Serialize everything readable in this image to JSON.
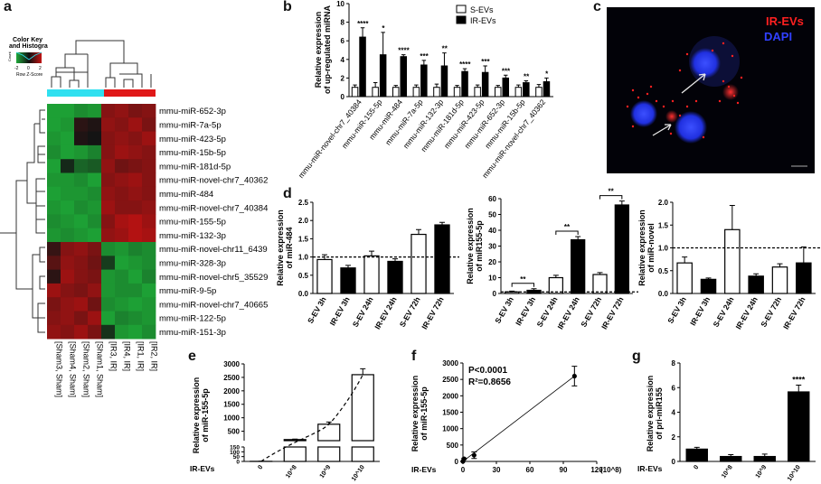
{
  "colors": {
    "ir_bar": "#000000",
    "s_bar": "#ffffff",
    "green": "#1fa83a",
    "red": "#c21414",
    "cyan": "#30e0f0",
    "ir_red": "#ff2020",
    "dapi": "#2030ff"
  },
  "panel_labels": {
    "a": "a",
    "b": "b",
    "c": "c",
    "d": "d",
    "e": "e",
    "f": "f",
    "g": "g"
  },
  "panel_a": {
    "color_key_title": "Color Key\nand Histogra",
    "color_key_ticks": [
      "-2",
      "0",
      "2"
    ],
    "color_key_xlabel": "Row Z-Score",
    "color_key_ylabel": "Count",
    "columns": [
      "[Sham3, Sham]",
      "[Sham4, Sham]",
      "[Sham2, Sham]",
      "[Sham1, Sham]",
      "[IR3, IR]",
      "[IR4, IR]",
      "[IR1, IR]",
      "[IR2, IR]"
    ],
    "rows": [
      "mmu-miR-652-3p",
      "mmu-miR-7a-5p",
      "mmu-miR-423-5p",
      "mmu-miR-15b-5p",
      "mmu-miR-181d-5p",
      "mmu-miR-novel-chr7_40362",
      "mmu-miR-484",
      "mmu-miR-novel-chr7_40384",
      "mmu-miR-155-5p",
      "mmu-miR-132-3p",
      "mmu-miR-novel-chr11_6439",
      "mmu-miR-328-3p",
      "mmu-miR-novel-chr5_35529",
      "mmu-miR-9-5p",
      "mmu-miR-novel-chr7_40665",
      "mmu-miR-122-5p",
      "mmu-miR-151-3p"
    ],
    "zscores": [
      [
        -1.4,
        -1.4,
        -1.2,
        -1.3,
        1.0,
        1.1,
        0.9,
        1.0
      ],
      [
        -1.4,
        -1.3,
        0.2,
        0.1,
        1.1,
        1.0,
        1.2,
        0.9
      ],
      [
        -1.3,
        -1.4,
        0.1,
        0.0,
        1.0,
        1.1,
        1.0,
        1.2
      ],
      [
        -1.2,
        -1.4,
        -1.3,
        -1.1,
        1.0,
        1.2,
        1.1,
        1.0
      ],
      [
        -1.4,
        -0.2,
        -0.8,
        -0.7,
        1.1,
        0.8,
        0.9,
        1.0
      ],
      [
        -1.3,
        -1.3,
        -1.2,
        -1.4,
        1.0,
        1.1,
        1.2,
        1.0
      ],
      [
        -1.4,
        -1.3,
        -1.3,
        -1.2,
        1.1,
        1.0,
        1.1,
        1.0
      ],
      [
        -1.3,
        -1.4,
        -1.2,
        -1.3,
        1.2,
        1.0,
        1.0,
        1.1
      ],
      [
        -1.2,
        -1.3,
        -1.4,
        -1.2,
        1.0,
        1.3,
        1.4,
        1.2
      ],
      [
        -1.3,
        -1.2,
        -1.3,
        -1.4,
        1.1,
        1.2,
        1.4,
        1.3
      ],
      [
        0.3,
        1.0,
        1.1,
        0.9,
        -1.2,
        -1.3,
        -1.1,
        -1.2
      ],
      [
        0.6,
        1.1,
        1.0,
        0.8,
        -0.4,
        -1.4,
        -1.3,
        -1.2
      ],
      [
        0.2,
        1.2,
        1.0,
        0.9,
        -1.3,
        -1.2,
        -1.4,
        -1.1
      ],
      [
        1.2,
        1.0,
        0.9,
        1.1,
        -1.3,
        -1.2,
        -1.2,
        -1.4
      ],
      [
        0.9,
        1.1,
        1.2,
        0.8,
        -1.2,
        -1.3,
        -1.4,
        -1.3
      ],
      [
        1.0,
        1.1,
        0.9,
        1.2,
        -1.4,
        -1.1,
        -1.2,
        -1.3
      ],
      [
        1.1,
        1.0,
        1.2,
        0.9,
        -0.3,
        -1.3,
        -1.4,
        -1.2
      ]
    ]
  },
  "panel_b": {
    "ylabel": "Relative expression\nof up-regulated miRNA",
    "legend": [
      "S-EVs",
      "IR-EVs"
    ],
    "yticks": [
      "0",
      "2",
      "4",
      "6",
      "8",
      "10"
    ]
  },
  "panel_c": {
    "legend": [
      "IR-EVs",
      "DAPI"
    ]
  },
  "panel_d": [
    {
      "ylabel": "Relative expression\nof miR-484"
    },
    {
      "ylabel": "Relative expression\nof miR155-5p"
    },
    {
      "ylabel": "Relative expression\nof miR-novel"
    }
  ],
  "panel_e": {
    "ylabel": "Relative expression\nof miR-155-5p",
    "xlead": "IR-EVs"
  },
  "panel_f": {
    "ylabel": "Relative expression\nof miR-155-5p",
    "xlead": "IR-EVs",
    "stats": [
      "P<0.0001",
      "R²=0.8656"
    ],
    "xunit": "(10^8)"
  },
  "panel_g": {
    "ylabel": "Relative expression\nof pri-miR155",
    "xlead": "IR-EVs"
  },
  "chart_data": [
    {
      "id": "b",
      "type": "bar",
      "categories": [
        "mmu-miR-novel-chr7_40384",
        "mmu-miR-155-5p",
        "mmu-miR-484",
        "mmu-miR-7a-5p",
        "mmu-miR-132-3p",
        "mmu-miR-181d-5p",
        "mmu-miR-423-5p",
        "mmu-miR-652-3p",
        "mmu-miR-15b-5p",
        "mmu-miR-novel-chr7_40362"
      ],
      "series": [
        {
          "name": "S-EVs",
          "values": [
            1,
            1,
            1,
            1,
            1,
            1,
            1,
            1,
            1,
            1
          ],
          "errors": [
            0.25,
            0.5,
            0.2,
            0.25,
            0.35,
            0.2,
            0.25,
            0.2,
            0.25,
            0.3
          ]
        },
        {
          "name": "IR-EVs",
          "values": [
            6.4,
            4.5,
            4.3,
            3.4,
            3.3,
            2.7,
            2.6,
            2.0,
            1.5,
            1.6
          ],
          "errors": [
            1.0,
            2.4,
            0.2,
            0.5,
            1.4,
            0.3,
            0.7,
            0.3,
            0.2,
            0.4
          ]
        }
      ],
      "significance": [
        "****",
        "*",
        "****",
        "***",
        "**",
        "****",
        "***",
        "***",
        "**",
        "*"
      ],
      "ylim": [
        0,
        10
      ]
    },
    {
      "id": "d1",
      "type": "bar",
      "categories": [
        "S-EV 3h",
        "IR-EV 3h",
        "S-EV 24h",
        "IR-EV 24h",
        "S-EV 72h",
        "IR-EV 72h"
      ],
      "values": [
        0.93,
        0.7,
        1.03,
        0.88,
        1.62,
        1.88
      ],
      "errors": [
        0.13,
        0.07,
        0.13,
        0.07,
        0.13,
        0.07
      ],
      "fills": [
        "s",
        "ir",
        "s",
        "ir",
        "s",
        "ir"
      ],
      "yticks": [
        "0.0",
        "0.5",
        "1.0",
        "1.5",
        "2.0",
        "2.5"
      ],
      "ylim": [
        0,
        2.5
      ],
      "refline": 1
    },
    {
      "id": "d2",
      "type": "bar",
      "categories": [
        "S-EV 3h",
        "IR-EV 3h",
        "S-EV 24h",
        "IR-EV 24h",
        "S-EV 72h",
        "IR-EV 72h"
      ],
      "values": [
        1,
        2,
        10,
        34,
        12,
        56
      ],
      "errors": [
        0.5,
        1,
        1.5,
        2,
        1.2,
        2.5
      ],
      "fills": [
        "s",
        "ir",
        "s",
        "ir",
        "s",
        "ir"
      ],
      "yticks": [
        "0",
        "10",
        "20",
        "30",
        "40",
        "50",
        "60"
      ],
      "ylim": [
        0,
        60
      ],
      "refline": 1,
      "brackets": [
        {
          "from": 0,
          "to": 1,
          "label": "**"
        },
        {
          "from": 2,
          "to": 3,
          "label": "**"
        },
        {
          "from": 4,
          "to": 5,
          "label": "**"
        }
      ]
    },
    {
      "id": "d3",
      "type": "bar",
      "categories": [
        "S-EV 3h",
        "IR-EV 3h",
        "S-EV 24h",
        "IR-EV 24h",
        "S-EV 72h",
        "IR-EV 72h"
      ],
      "values": [
        0.67,
        0.31,
        1.4,
        0.38,
        0.58,
        0.67
      ],
      "errors": [
        0.13,
        0.03,
        0.53,
        0.05,
        0.07,
        0.35
      ],
      "fills": [
        "s",
        "ir",
        "s",
        "ir",
        "s",
        "ir"
      ],
      "yticks": [
        "0.0",
        "0.5",
        "1.0",
        "1.5",
        "2.0"
      ],
      "ylim": [
        0,
        2
      ],
      "refline": 1
    },
    {
      "id": "e",
      "type": "bar",
      "categories": [
        "0",
        "10^8",
        "10^9",
        "10^10"
      ],
      "values": [
        1,
        190,
        760,
        2600
      ],
      "errors": [
        1,
        20,
        80,
        220
      ],
      "y_segments": {
        "lower": {
          "range": [
            0,
            150
          ],
          "ticks": [
            0,
            50,
            100,
            150
          ]
        },
        "upper": {
          "range": [
            150,
            3000
          ],
          "ticks": [
            500,
            1000,
            1500,
            2000,
            2500,
            3000
          ]
        }
      },
      "trend": "dashed"
    },
    {
      "id": "f",
      "type": "scatter",
      "x": [
        0,
        1,
        10,
        100
      ],
      "y": [
        1,
        80,
        190,
        2600
      ],
      "errors": [
        1,
        20,
        100,
        300
      ],
      "fit": {
        "from": [
          0,
          1
        ],
        "to": [
          100,
          2600
        ]
      },
      "xticks": [
        "0",
        "30",
        "60",
        "90",
        "120"
      ],
      "yticks": [
        "0",
        "500",
        "1000",
        "1500",
        "2000",
        "2500",
        "3000"
      ],
      "xlim": [
        0,
        120
      ],
      "ylim": [
        0,
        3000
      ]
    },
    {
      "id": "g",
      "type": "bar",
      "categories": [
        "0",
        "10^8",
        "10^9",
        "10^10"
      ],
      "values": [
        1.0,
        0.4,
        0.4,
        5.65
      ],
      "errors": [
        0.15,
        0.15,
        0.2,
        0.55
      ],
      "significance": [
        "",
        "",
        "",
        "****"
      ],
      "yticks": [
        "0",
        "2",
        "4",
        "6",
        "8"
      ],
      "ylim": [
        0,
        8
      ]
    }
  ]
}
